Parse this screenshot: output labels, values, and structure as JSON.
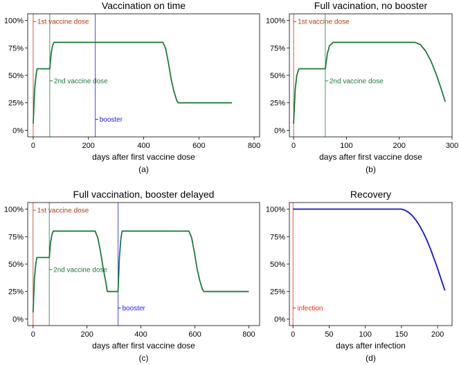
{
  "chart_data": [
    {
      "type": "line",
      "title": "Vaccination on time",
      "xlabel": "days after first vaccine dose",
      "panel_label": "(a)",
      "xlim": [
        -20,
        820
      ],
      "ylim": [
        -0.06,
        1.06
      ],
      "xticks": [
        0,
        200,
        400,
        600,
        800
      ],
      "xtick_labels": [
        "0",
        "200",
        "400",
        "600",
        "800"
      ],
      "yticks": [
        0,
        0.25,
        0.5,
        0.75,
        1.0
      ],
      "ytick_labels": [
        "0%",
        "25%",
        "50%",
        "75%",
        "100%"
      ],
      "series": [
        {
          "color": "#1b7a3a",
          "x": [
            0,
            5,
            10,
            14,
            60,
            65,
            70,
            75,
            470,
            480,
            490,
            500,
            510,
            520,
            525,
            720
          ],
          "y": [
            0.06,
            0.37,
            0.5,
            0.56,
            0.56,
            0.7,
            0.77,
            0.8,
            0.8,
            0.74,
            0.61,
            0.46,
            0.35,
            0.27,
            0.25,
            0.25
          ]
        }
      ],
      "vlines": [
        {
          "x": 0,
          "label": "1st vaccine dose",
          "color": "#b03a10",
          "label_y": 0.99
        },
        {
          "x": 60,
          "label": "2nd vaccine dose",
          "color": "#1b7a3a",
          "label_y": 0.45
        },
        {
          "x": 225,
          "label": "booster",
          "color": "#1a1aee",
          "label_y": 0.1
        }
      ]
    },
    {
      "type": "line",
      "title": "Full vacination, no booster",
      "xlabel": "days after first vaccine dose",
      "panel_label": "(b)",
      "xlim": [
        -8,
        300
      ],
      "ylim": [
        -0.06,
        1.06
      ],
      "xticks": [
        0,
        100,
        200,
        300
      ],
      "xtick_labels": [
        "0",
        "100",
        "200",
        "300"
      ],
      "yticks": [
        0,
        0.25,
        0.5,
        0.75,
        1.0
      ],
      "ytick_labels": [
        "0%",
        "25%",
        "50%",
        "75%",
        "100%"
      ],
      "series": [
        {
          "color": "#1b7a3a",
          "x": [
            0,
            3,
            6,
            10,
            60,
            64,
            68,
            75,
            230,
            240,
            250,
            260,
            270,
            280,
            287
          ],
          "y": [
            0.06,
            0.37,
            0.5,
            0.56,
            0.56,
            0.7,
            0.77,
            0.8,
            0.8,
            0.78,
            0.72,
            0.63,
            0.51,
            0.37,
            0.26
          ]
        }
      ],
      "vlines": [
        {
          "x": 0,
          "label": "1st vaccine dose",
          "color": "#b03a10",
          "label_y": 0.99
        },
        {
          "x": 60,
          "label": "2nd vaccine dose",
          "color": "#1b7a3a",
          "label_y": 0.45
        }
      ]
    },
    {
      "type": "line",
      "title": "Full vaccination, booster delayed",
      "xlabel": "days after first vaccine dose",
      "panel_label": "(c)",
      "xlim": [
        -20,
        840
      ],
      "ylim": [
        -0.06,
        1.06
      ],
      "xticks": [
        0,
        200,
        400,
        600,
        800
      ],
      "xtick_labels": [
        "0",
        "200",
        "400",
        "600",
        "800"
      ],
      "yticks": [
        0,
        0.25,
        0.5,
        0.75,
        1.0
      ],
      "ytick_labels": [
        "0%",
        "25%",
        "50%",
        "75%",
        "100%"
      ],
      "series": [
        {
          "color": "#1b7a3a",
          "x": [
            0,
            5,
            10,
            14,
            60,
            65,
            70,
            75,
            230,
            240,
            250,
            260,
            270,
            275,
            315,
            320,
            325,
            330,
            578,
            588,
            598,
            608,
            618,
            628,
            633,
            800
          ],
          "y": [
            0.06,
            0.37,
            0.5,
            0.56,
            0.56,
            0.7,
            0.77,
            0.8,
            0.8,
            0.74,
            0.61,
            0.46,
            0.33,
            0.25,
            0.25,
            0.55,
            0.72,
            0.8,
            0.8,
            0.74,
            0.61,
            0.46,
            0.35,
            0.27,
            0.25,
            0.25
          ]
        }
      ],
      "vlines": [
        {
          "x": 0,
          "label": "1st vaccine dose",
          "color": "#b03a10",
          "label_y": 0.99
        },
        {
          "x": 60,
          "label": "2nd vaccine dose",
          "color": "#1b7a3a",
          "label_y": 0.45
        },
        {
          "x": 315,
          "label": "booster",
          "color": "#1a1aee",
          "label_y": 0.1
        }
      ]
    },
    {
      "type": "line",
      "title": "Recovery",
      "xlabel": "days after infection",
      "panel_label": "(d)",
      "xlim": [
        -5,
        220
      ],
      "ylim": [
        -0.06,
        1.06
      ],
      "xticks": [
        0,
        50,
        100,
        150,
        200
      ],
      "xtick_labels": [
        "0",
        "50",
        "100",
        "150",
        "200"
      ],
      "yticks": [
        0,
        0.25,
        0.5,
        0.75,
        1.0
      ],
      "ytick_labels": [
        "0%",
        "25%",
        "50%",
        "75%",
        "100%"
      ],
      "series": [
        {
          "color": "#1010e0",
          "x": [
            0,
            150,
            155,
            160,
            165,
            170,
            175,
            180,
            185,
            190,
            195,
            200,
            205,
            210
          ],
          "y": [
            1.0,
            1.0,
            0.99,
            0.97,
            0.94,
            0.9,
            0.85,
            0.79,
            0.72,
            0.64,
            0.55,
            0.46,
            0.36,
            0.26
          ]
        }
      ],
      "vlines": [
        {
          "x": 0,
          "label": "infection",
          "color": "#ee2a10",
          "label_y": 0.1
        }
      ]
    }
  ]
}
